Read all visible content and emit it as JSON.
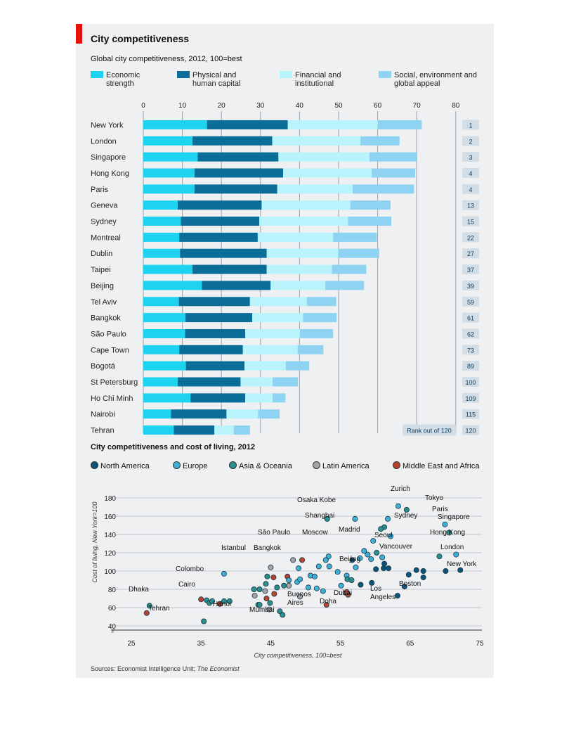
{
  "header": {
    "title": "City competitiveness",
    "subtitle": "Global city competitiveness, 2012, 100=best"
  },
  "legend": [
    {
      "label": "Economic strength",
      "color": "#1ed3f0"
    },
    {
      "label": "Physical and human capital",
      "color": "#0b6e99"
    },
    {
      "label": "Financial and institutional",
      "color": "#b9f3fb"
    },
    {
      "label": "Social, environment and global appeal",
      "color": "#8fd3f2"
    }
  ],
  "rank_label": "Rank out of 120",
  "chart_data": [
    {
      "type": "bar",
      "stacked": true,
      "orientation": "horizontal",
      "title": "City competitiveness",
      "subtitle": "Global city competitiveness, 2012, 100=best",
      "xlim": [
        0,
        80
      ],
      "xticks": [
        0,
        10,
        20,
        30,
        40,
        50,
        60,
        70,
        80
      ],
      "grid": true,
      "legend_position": "top",
      "categories": [
        "New York",
        "London",
        "Singapore",
        "Hong Kong",
        "Paris",
        "Geneva",
        "Sydney",
        "Montreal",
        "Dublin",
        "Taipei",
        "Beijing",
        "Tel Aviv",
        "Bangkok",
        "São Paulo",
        "Cape Town",
        "Bogotá",
        "St Petersburg",
        "Ho Chi Minh",
        "Nairobi",
        "Tehran"
      ],
      "ranks": [
        1,
        2,
        3,
        4,
        4,
        13,
        15,
        22,
        27,
        37,
        39,
        59,
        61,
        62,
        73,
        89,
        100,
        109,
        115,
        120
      ],
      "series": [
        {
          "name": "Economic strength",
          "values": [
            16.3,
            12.6,
            13.9,
            13.1,
            13.1,
            8.8,
            9.6,
            9.2,
            9.4,
            12.6,
            15.0,
            9.1,
            10.8,
            10.7,
            9.2,
            10.9,
            8.8,
            12.1,
            7.1,
            7.8
          ]
        },
        {
          "name": "Physical and human capital",
          "values": [
            20.7,
            20.4,
            20.7,
            22.7,
            21.2,
            21.5,
            20.1,
            20.1,
            22.2,
            19.0,
            17.6,
            18.2,
            17.1,
            15.4,
            16.3,
            15.0,
            16.1,
            14.0,
            14.2,
            10.4
          ]
        },
        {
          "name": "Financial and institutional",
          "values": [
            23.0,
            22.6,
            23.3,
            22.7,
            19.3,
            22.7,
            22.7,
            19.3,
            18.3,
            16.7,
            14.0,
            14.6,
            13.0,
            14.0,
            14.0,
            10.6,
            8.2,
            7.0,
            8.1,
            5.0
          ]
        },
        {
          "name": "Social, environment and global appeal",
          "values": [
            11.3,
            10.0,
            12.1,
            11.1,
            15.7,
            10.3,
            11.1,
            11.2,
            10.5,
            8.8,
            9.9,
            7.5,
            8.6,
            8.5,
            6.6,
            6.0,
            6.5,
            3.3,
            5.5,
            4.1
          ]
        }
      ]
    },
    {
      "type": "scatter",
      "title": "City competitiveness and cost of living, 2012",
      "xlabel": "City competitiveness, 100=best",
      "ylabel": "Cost of living, New York=100",
      "xlim": [
        25,
        75
      ],
      "ylim": [
        30,
        185
      ],
      "xticks": [
        25,
        35,
        45,
        55,
        65,
        75
      ],
      "yticks": [
        40,
        60,
        80,
        100,
        120,
        140,
        160,
        180
      ],
      "grid": true,
      "legend_position": "top",
      "groups": [
        {
          "name": "North America",
          "color": "#0b5378"
        },
        {
          "name": "Europe",
          "color": "#3fb1d6"
        },
        {
          "name": "Asia & Oceania",
          "color": "#2a8e8c"
        },
        {
          "name": "Latin America",
          "color": "#a4a4a4"
        },
        {
          "name": "Middle East and Africa",
          "color": "#b4432f"
        }
      ],
      "labels": [
        "Zurich",
        "Tokyo",
        "Osaka Kobe",
        "Paris",
        "Singapore",
        "Sydney",
        "Shanghai",
        "Hong Kong",
        "Madrid",
        "Seoul",
        "São Paulo",
        "Moscow",
        "London",
        "Vancouver",
        "Istanbul",
        "Bangkok",
        "Beijing",
        "New York",
        "Colombo",
        "Cairo",
        "Los Angeles",
        "Boston",
        "Dhaka",
        "Hanoi",
        "Dubai",
        "Doha",
        "Buenos Aires",
        "Mumbai",
        "Tehran"
      ],
      "points": [
        {
          "x": 63.3,
          "y": 171,
          "g": 1
        },
        {
          "x": 64.5,
          "y": 167,
          "g": 2
        },
        {
          "x": 53.1,
          "y": 157,
          "g": 2
        },
        {
          "x": 57.1,
          "y": 157,
          "g": 1
        },
        {
          "x": 70.0,
          "y": 151,
          "g": 1
        },
        {
          "x": 61.8,
          "y": 157,
          "g": 1
        },
        {
          "x": 61.3,
          "y": 148,
          "g": 2
        },
        {
          "x": 60.8,
          "y": 146,
          "g": 2
        },
        {
          "x": 62.2,
          "y": 138,
          "g": 1
        },
        {
          "x": 70.6,
          "y": 142,
          "g": 2
        },
        {
          "x": 59.7,
          "y": 133,
          "g": 1
        },
        {
          "x": 58.4,
          "y": 122,
          "g": 1
        },
        {
          "x": 58.9,
          "y": 118,
          "g": 1
        },
        {
          "x": 60.2,
          "y": 120,
          "g": 2
        },
        {
          "x": 61.0,
          "y": 115,
          "g": 1
        },
        {
          "x": 69.2,
          "y": 116,
          "g": 2
        },
        {
          "x": 71.6,
          "y": 118,
          "g": 1
        },
        {
          "x": 57.8,
          "y": 114,
          "g": 1
        },
        {
          "x": 59.4,
          "y": 113,
          "g": 1
        },
        {
          "x": 53.3,
          "y": 116,
          "g": 1
        },
        {
          "x": 52.9,
          "y": 112,
          "g": 1
        },
        {
          "x": 56.7,
          "y": 112,
          "g": 0
        },
        {
          "x": 57.2,
          "y": 104,
          "g": 1
        },
        {
          "x": 60.1,
          "y": 102,
          "g": 0
        },
        {
          "x": 61.2,
          "y": 103,
          "g": 0
        },
        {
          "x": 61.9,
          "y": 103,
          "g": 0
        },
        {
          "x": 61.3,
          "y": 108,
          "g": 0
        },
        {
          "x": 64.8,
          "y": 96,
          "g": 0
        },
        {
          "x": 65.9,
          "y": 101,
          "g": 0
        },
        {
          "x": 66.9,
          "y": 93,
          "g": 0
        },
        {
          "x": 66.9,
          "y": 100,
          "g": 0
        },
        {
          "x": 70.1,
          "y": 100,
          "g": 0
        },
        {
          "x": 72.2,
          "y": 101,
          "g": 0
        },
        {
          "x": 64.2,
          "y": 83,
          "g": 0
        },
        {
          "x": 63.2,
          "y": 73,
          "g": 0
        },
        {
          "x": 57.9,
          "y": 85,
          "g": 0
        },
        {
          "x": 59.5,
          "y": 87,
          "g": 0
        },
        {
          "x": 54.6,
          "y": 99,
          "g": 1
        },
        {
          "x": 53.4,
          "y": 105,
          "g": 1
        },
        {
          "x": 51.9,
          "y": 105,
          "g": 1
        },
        {
          "x": 55.9,
          "y": 95,
          "g": 1
        },
        {
          "x": 50.7,
          "y": 95,
          "g": 1
        },
        {
          "x": 49.0,
          "y": 103,
          "g": 1
        },
        {
          "x": 48.8,
          "y": 88,
          "g": 1
        },
        {
          "x": 49.2,
          "y": 91,
          "g": 1
        },
        {
          "x": 51.3,
          "y": 94,
          "g": 1
        },
        {
          "x": 50.4,
          "y": 82,
          "g": 1
        },
        {
          "x": 51.6,
          "y": 81,
          "g": 1
        },
        {
          "x": 52.5,
          "y": 78,
          "g": 1
        },
        {
          "x": 55.1,
          "y": 84,
          "g": 1
        },
        {
          "x": 56.0,
          "y": 91,
          "g": 2
        },
        {
          "x": 56.6,
          "y": 90,
          "g": 2
        },
        {
          "x": 48.2,
          "y": 112,
          "g": 3
        },
        {
          "x": 49.5,
          "y": 112,
          "g": 4
        },
        {
          "x": 45.0,
          "y": 104,
          "g": 3
        },
        {
          "x": 47.4,
          "y": 94,
          "g": 4
        },
        {
          "x": 47.6,
          "y": 90,
          "g": 1
        },
        {
          "x": 45.4,
          "y": 93,
          "g": 4
        },
        {
          "x": 44.5,
          "y": 94,
          "g": 2
        },
        {
          "x": 38.3,
          "y": 97,
          "g": 1
        },
        {
          "x": 45.9,
          "y": 82,
          "g": 2
        },
        {
          "x": 46.9,
          "y": 84,
          "g": 2
        },
        {
          "x": 47.6,
          "y": 84,
          "g": 3
        },
        {
          "x": 44.3,
          "y": 86,
          "g": 2
        },
        {
          "x": 43.4,
          "y": 80,
          "g": 2
        },
        {
          "x": 42.6,
          "y": 80,
          "g": 2
        },
        {
          "x": 44.2,
          "y": 78,
          "g": 3
        },
        {
          "x": 45.5,
          "y": 75,
          "g": 4
        },
        {
          "x": 42.7,
          "y": 73,
          "g": 3
        },
        {
          "x": 44.4,
          "y": 70,
          "g": 4
        },
        {
          "x": 44.9,
          "y": 65,
          "g": 2
        },
        {
          "x": 43.2,
          "y": 63,
          "g": 2
        },
        {
          "x": 43.4,
          "y": 63,
          "g": 2
        },
        {
          "x": 44.8,
          "y": 58,
          "g": 3
        },
        {
          "x": 46.3,
          "y": 56,
          "g": 2
        },
        {
          "x": 46.7,
          "y": 52,
          "g": 2
        },
        {
          "x": 49.2,
          "y": 72,
          "g": 3
        },
        {
          "x": 55.8,
          "y": 76,
          "g": 4
        },
        {
          "x": 56.1,
          "y": 74,
          "g": 4
        },
        {
          "x": 53.0,
          "y": 63,
          "g": 4
        },
        {
          "x": 55.9,
          "y": 77,
          "g": 4
        },
        {
          "x": 35.8,
          "y": 68,
          "g": 2
        },
        {
          "x": 36.2,
          "y": 65,
          "g": 2
        },
        {
          "x": 36.6,
          "y": 67,
          "g": 2
        },
        {
          "x": 35.0,
          "y": 69,
          "g": 4
        },
        {
          "x": 37.7,
          "y": 64,
          "g": 4
        },
        {
          "x": 38.3,
          "y": 67,
          "g": 2
        },
        {
          "x": 39.1,
          "y": 67,
          "g": 2
        },
        {
          "x": 35.4,
          "y": 45,
          "g": 2
        },
        {
          "x": 27.6,
          "y": 62,
          "g": 2
        },
        {
          "x": 27.2,
          "y": 54,
          "g": 4
        }
      ]
    }
  ],
  "scatter": {
    "subtitle": "City competitiveness and cost of living, 2012",
    "xlabel": "City competitiveness, 100=best",
    "ylabel": "Cost of living, New York=100",
    "legend": [
      "North America",
      "Europe",
      "Asia & Oceania",
      "Latin America",
      "Middle East and Africa"
    ]
  },
  "footer": {
    "sources_prefix": "Sources: Economist Intelligence Unit; ",
    "sources_italic": "The Economist"
  }
}
